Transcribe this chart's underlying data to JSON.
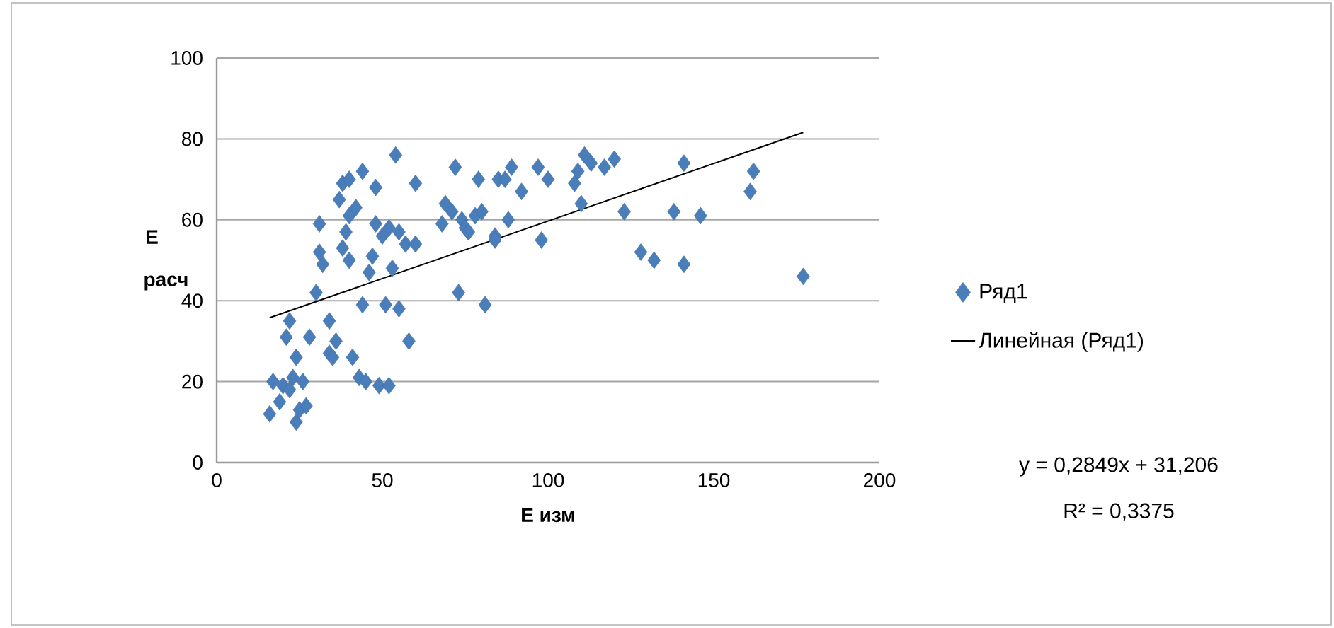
{
  "chart_data": {
    "type": "scatter",
    "xlabel": "Е изм",
    "ylabel": "Е расч",
    "xlim": [
      0,
      200
    ],
    "xticks": [
      0,
      50,
      100,
      150,
      200
    ],
    "ylim": [
      0,
      100
    ],
    "yticks": [
      0,
      20,
      40,
      60,
      80,
      100
    ],
    "grid": "y",
    "legend": "right",
    "marker": "diamond",
    "annotations": [
      "y = 0,2849x + 31,206",
      "R² = 0,3375"
    ],
    "series": [
      {
        "name": "Ряд1",
        "color": "#4a7ebb",
        "x": [
          16,
          17,
          19,
          20,
          21,
          22,
          22,
          23,
          24,
          24,
          25,
          26,
          27,
          28,
          30,
          31,
          31,
          32,
          34,
          34,
          35,
          36,
          37,
          38,
          38,
          39,
          40,
          40,
          40,
          41,
          42,
          43,
          44,
          44,
          45,
          46,
          47,
          48,
          48,
          49,
          50,
          51,
          52,
          52,
          53,
          54,
          55,
          55,
          57,
          58,
          60,
          60,
          68,
          69,
          71,
          72,
          73,
          74,
          75,
          76,
          78,
          79,
          80,
          81,
          84,
          84,
          85,
          87,
          88,
          89,
          92,
          97,
          98,
          100,
          108,
          109,
          110,
          111,
          113,
          117,
          120,
          123,
          128,
          132,
          138,
          141,
          141,
          146,
          161,
          162,
          177
        ],
        "values": [
          12,
          20,
          15,
          19,
          31,
          35,
          18,
          21,
          26,
          10,
          13,
          20,
          14,
          31,
          42,
          52,
          59,
          49,
          35,
          27,
          26,
          30,
          65,
          53,
          69,
          57,
          50,
          61,
          70,
          26,
          63,
          21,
          39,
          72,
          20,
          47,
          51,
          68,
          59,
          19,
          56,
          39,
          58,
          19,
          48,
          76,
          57,
          38,
          54,
          30,
          69,
          54,
          59,
          64,
          62,
          73,
          42,
          60,
          58,
          57,
          61,
          70,
          62,
          39,
          56,
          55,
          70,
          70,
          60,
          73,
          67,
          73,
          55,
          70,
          69,
          72,
          64,
          76,
          74,
          73,
          75,
          62,
          52,
          50,
          62,
          49,
          74,
          61,
          67,
          72,
          46
        ]
      },
      {
        "name": "Линейная (Ряд1)",
        "type": "line",
        "color": "#000000",
        "line_style": "solid",
        "marker": "none",
        "x": [
          16,
          177
        ],
        "values": [
          35.8,
          81.6
        ]
      }
    ]
  }
}
